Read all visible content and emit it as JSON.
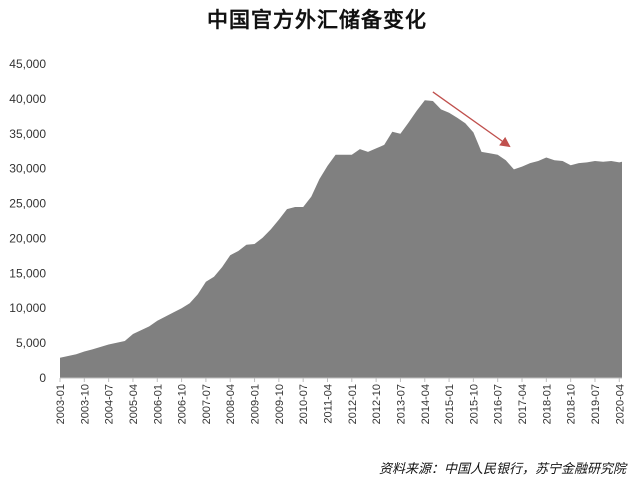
{
  "chart_data": {
    "type": "area",
    "title": "中国官方外汇储备变化",
    "source": "资料来源：中国人民银行，苏宁金融研究院",
    "xlabel": "",
    "ylabel": "",
    "ylim": [
      0,
      45000
    ],
    "yticks": [
      0,
      5000,
      10000,
      15000,
      20000,
      25000,
      30000,
      35000,
      40000,
      45000
    ],
    "ytick_labels": [
      "0",
      "5,000",
      "10,000",
      "15,000",
      "20,000",
      "25,000",
      "30,000",
      "35,000",
      "40,000",
      "45,000"
    ],
    "xtick_labels": [
      "2003-01",
      "2003-10",
      "2004-07",
      "2005-04",
      "2006-01",
      "2006-10",
      "2007-07",
      "2008-04",
      "2009-01",
      "2009-10",
      "2010-07",
      "2011-04",
      "2012-01",
      "2012-10",
      "2013-07",
      "2014-04",
      "2015-01",
      "2015-10",
      "2016-07",
      "2017-04",
      "2018-01",
      "2018-10",
      "2019-07",
      "2020-04"
    ],
    "grid": false,
    "legend": "none",
    "fill_color": "#808080",
    "arrow_color": "#c0504d",
    "arrow": {
      "from": [
        "2014-07",
        41000
      ],
      "to": [
        "2016-11",
        33300
      ]
    },
    "series": [
      {
        "points": [
          [
            "2003-01",
            2900
          ],
          [
            "2003-07",
            3400
          ],
          [
            "2003-10",
            3800
          ],
          [
            "2004-01",
            4100
          ],
          [
            "2004-07",
            4800
          ],
          [
            "2005-01",
            5300
          ],
          [
            "2005-04",
            6300
          ],
          [
            "2005-10",
            7400
          ],
          [
            "2006-01",
            8200
          ],
          [
            "2006-07",
            9400
          ],
          [
            "2006-10",
            10000
          ],
          [
            "2007-01",
            10700
          ],
          [
            "2007-04",
            12000
          ],
          [
            "2007-07",
            13800
          ],
          [
            "2007-10",
            14500
          ],
          [
            "2008-01",
            15900
          ],
          [
            "2008-04",
            17600
          ],
          [
            "2008-07",
            18200
          ],
          [
            "2008-10",
            19100
          ],
          [
            "2009-01",
            19200
          ],
          [
            "2009-04",
            20100
          ],
          [
            "2009-07",
            21300
          ],
          [
            "2009-10",
            22700
          ],
          [
            "2010-01",
            24200
          ],
          [
            "2010-04",
            24500
          ],
          [
            "2010-07",
            24500
          ],
          [
            "2010-10",
            26000
          ],
          [
            "2011-01",
            28500
          ],
          [
            "2011-04",
            30400
          ],
          [
            "2011-07",
            32000
          ],
          [
            "2011-10",
            32000
          ],
          [
            "2012-01",
            32000
          ],
          [
            "2012-04",
            32800
          ],
          [
            "2012-07",
            32400
          ],
          [
            "2012-10",
            32900
          ],
          [
            "2013-01",
            33400
          ],
          [
            "2013-04",
            35300
          ],
          [
            "2013-07",
            35000
          ],
          [
            "2013-10",
            36600
          ],
          [
            "2014-01",
            38300
          ],
          [
            "2014-04",
            39800
          ],
          [
            "2014-07",
            39700
          ],
          [
            "2014-10",
            38500
          ],
          [
            "2015-01",
            38000
          ],
          [
            "2015-04",
            37300
          ],
          [
            "2015-07",
            36500
          ],
          [
            "2015-10",
            35200
          ],
          [
            "2016-01",
            32400
          ],
          [
            "2016-04",
            32200
          ],
          [
            "2016-07",
            32000
          ],
          [
            "2016-10",
            31200
          ],
          [
            "2017-01",
            29900
          ],
          [
            "2017-04",
            30300
          ],
          [
            "2017-07",
            30800
          ],
          [
            "2017-10",
            31100
          ],
          [
            "2018-01",
            31600
          ],
          [
            "2018-04",
            31200
          ],
          [
            "2018-07",
            31100
          ],
          [
            "2018-10",
            30500
          ],
          [
            "2019-01",
            30800
          ],
          [
            "2019-04",
            30900
          ],
          [
            "2019-07",
            31100
          ],
          [
            "2019-10",
            31000
          ],
          [
            "2020-01",
            31100
          ],
          [
            "2020-04",
            30900
          ],
          [
            "2020-05",
            31000
          ]
        ]
      }
    ]
  }
}
